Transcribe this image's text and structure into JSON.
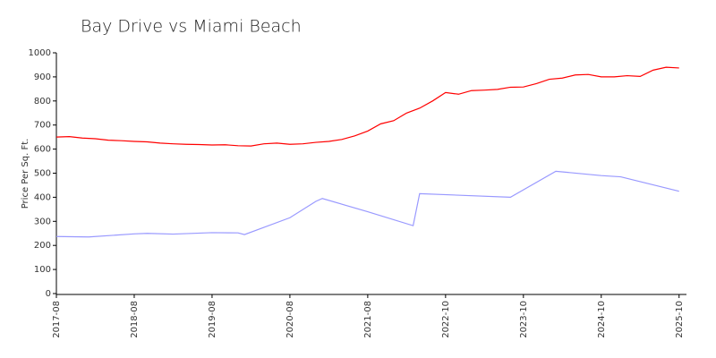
{
  "chart_data": {
    "type": "line",
    "title": "Bay Drive vs Miami Beach",
    "y_label": "Price Per Sq. Ft.",
    "xlim": [
      0,
      97
    ],
    "xticks": [
      {
        "value": 0,
        "label": "2017-08"
      },
      {
        "value": 12,
        "label": "2018-08"
      },
      {
        "value": 24,
        "label": "2019-08"
      },
      {
        "value": 36,
        "label": "2020-08"
      },
      {
        "value": 48,
        "label": "2021-08"
      },
      {
        "value": 60,
        "label": "2022-10"
      },
      {
        "value": 72,
        "label": "2023-10"
      },
      {
        "value": 84,
        "label": "2024-10"
      },
      {
        "value": 96,
        "label": "2025-10"
      }
    ],
    "ylim": [
      0,
      1000
    ],
    "yticks": [
      0,
      100,
      200,
      300,
      400,
      500,
      600,
      700,
      800,
      900,
      1000
    ],
    "grid": false,
    "series": [
      {
        "color": "#ff0000",
        "x": [
          0,
          2,
          4,
          6,
          8,
          10,
          12,
          14,
          16,
          18,
          20,
          22,
          24,
          26,
          28,
          30,
          32,
          34,
          36,
          38,
          40,
          42,
          44,
          46,
          48,
          50,
          52,
          54,
          56,
          58,
          60,
          62,
          64,
          66,
          68,
          70,
          72,
          74,
          76,
          78,
          80,
          82,
          84,
          86,
          88,
          90,
          92,
          94,
          96
        ],
        "values": [
          650,
          652,
          646,
          643,
          637,
          635,
          632,
          630,
          625,
          622,
          620,
          619,
          617,
          618,
          614,
          613,
          622,
          625,
          620,
          622,
          628,
          632,
          640,
          655,
          675,
          705,
          718,
          750,
          770,
          800,
          835,
          828,
          843,
          845,
          848,
          857,
          858,
          872,
          890,
          895,
          908,
          910,
          900,
          900,
          905,
          902,
          928,
          940,
          937
        ]
      },
      {
        "color": "#9999ff",
        "x": [
          0,
          5,
          12,
          14,
          18,
          24,
          28,
          29,
          36,
          40,
          41,
          48,
          55,
          56,
          70,
          77,
          84,
          87,
          96
        ],
        "values": [
          237,
          235,
          248,
          250,
          247,
          253,
          252,
          245,
          315,
          383,
          395,
          340,
          282,
          415,
          400,
          508,
          490,
          485,
          425
        ]
      }
    ]
  }
}
